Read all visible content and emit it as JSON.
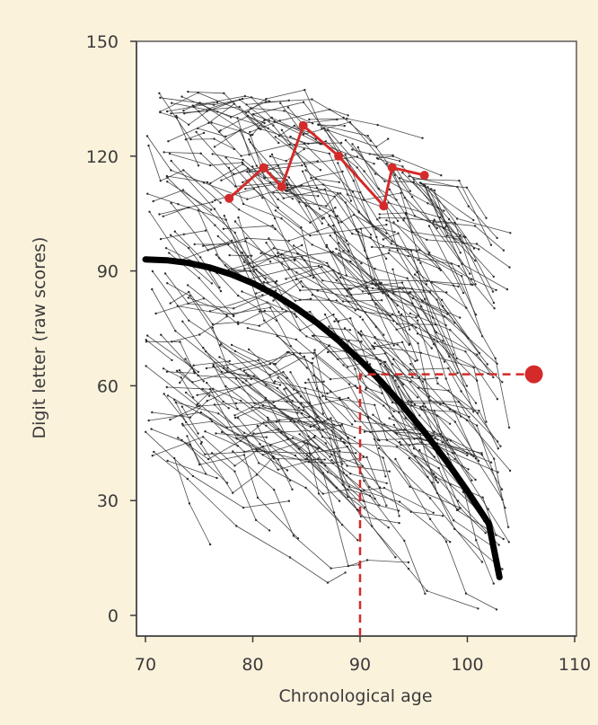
{
  "chart_data": {
    "type": "line",
    "xlabel": "Chronological age",
    "ylabel": "Digit letter (raw scores)",
    "xlim": [
      70,
      110
    ],
    "ylim": [
      0,
      150
    ],
    "x_ticks": [
      70,
      80,
      90,
      100,
      110
    ],
    "y_ticks": [
      0,
      30,
      60,
      90,
      120,
      150
    ],
    "grid": false,
    "legend": "none",
    "colors": {
      "background": "#fbf2dc",
      "plot_background": "#ffffff",
      "individual_lines": "#2b2b2b",
      "trend": "#000000",
      "highlight": "#d42a2a",
      "axis": "#3b3b3b"
    },
    "series": [
      {
        "role": "average-trend",
        "x": [
          70,
          72,
          74,
          76,
          78,
          80,
          82,
          84,
          86,
          88,
          90,
          92,
          94,
          96,
          98,
          100,
          102,
          103
        ],
        "y": [
          93,
          92.8,
          92.1,
          90.9,
          89.1,
          86.8,
          83.9,
          80.4,
          76.4,
          71.8,
          66.7,
          61,
          54.7,
          47.9,
          40.5,
          32.5,
          24,
          10
        ]
      },
      {
        "role": "highlighted-individual",
        "x": [
          77.8,
          81,
          82.7,
          84.7,
          88,
          92.2,
          93,
          96
        ],
        "y": [
          109,
          117,
          112,
          128,
          120,
          107,
          117,
          115
        ]
      },
      {
        "role": "reference-point",
        "x": [
          106.2
        ],
        "y": [
          63
        ]
      },
      {
        "role": "reference-lines",
        "x": [
          90,
          90,
          106.2
        ],
        "y": [
          0,
          63,
          63
        ]
      }
    ],
    "individuals": {
      "description_only": false,
      "count": 340,
      "age_start_range": [
        70,
        97
      ],
      "score_start_range": [
        40,
        138
      ]
    }
  }
}
